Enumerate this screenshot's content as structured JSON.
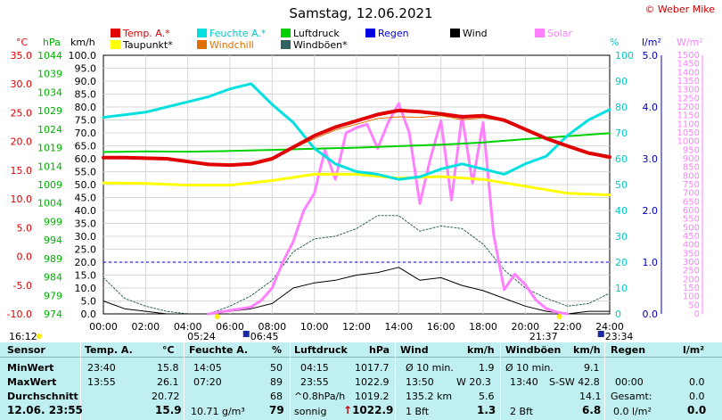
{
  "title": "Samstag, 12.06.2021",
  "credit": "© Weber Mike",
  "legend": [
    {
      "label": "Temp. A.*",
      "color": "#e00000"
    },
    {
      "label": "Feuchte A.*",
      "color": "#00e0e0"
    },
    {
      "label": "Luftdruck",
      "color": "#00d000"
    },
    {
      "label": "Regen",
      "color": "#0000e0"
    },
    {
      "label": "Wind",
      "color": "#000000"
    },
    {
      "label": "Solar",
      "color": "#ff80ff"
    },
    {
      "label": "Taupunkt*",
      "color": "#ffff00"
    },
    {
      "label": "Windchill",
      "color": "#e07000"
    },
    {
      "label": "Windböen*",
      "color": "#306060"
    }
  ],
  "axis_headers": {
    "temp": "°C",
    "press": "hPa",
    "wind": "km/h",
    "hum": "%",
    "rain": "l/m²",
    "solar": "W/m²"
  },
  "chart_data": {
    "type": "line",
    "x_label_ticks": [
      "00:00",
      "02:00",
      "04:00",
      "06:00",
      "08:00",
      "10:00",
      "12:00",
      "14:00",
      "16:00",
      "18:00",
      "20:00",
      "22:00",
      "24:00"
    ],
    "y_axes": {
      "temp": {
        "ticks": [
          "35.0",
          "30.0",
          "25.0",
          "20.0",
          "15.0",
          "10.0",
          "5.0",
          "0.0",
          "-5.0",
          "-10.0"
        ],
        "range": [
          -10,
          35
        ]
      },
      "pressure": {
        "ticks": [
          "1044",
          "1039",
          "1034",
          "1029",
          "1024",
          "1019",
          "1014",
          "1009",
          "1004",
          "999",
          "994",
          "989",
          "984",
          "979",
          "974"
        ],
        "range": [
          974,
          1044
        ]
      },
      "wind": {
        "ticks": [
          "100.0",
          "95.0",
          "90.0",
          "85.0",
          "80.0",
          "75.0",
          "70.0",
          "65.0",
          "60.0",
          "55.0",
          "50.0",
          "45.0",
          "40.0",
          "35.0",
          "30.0",
          "25.0",
          "20.0",
          "15.0",
          "10.0",
          "5.0",
          "0.0"
        ],
        "range": [
          0,
          100
        ]
      },
      "humidity": {
        "ticks": [
          "100",
          "90",
          "80",
          "70",
          "60",
          "50",
          "40",
          "30",
          "20",
          "10",
          "0"
        ],
        "range": [
          0,
          100
        ]
      },
      "rain": {
        "ticks": [
          "5.0",
          "4.0",
          "3.0",
          "2.0",
          "1.0",
          "0.0"
        ],
        "range": [
          0,
          5
        ]
      },
      "solar": {
        "ticks": [
          "1500",
          "1450",
          "1400",
          "1350",
          "1300",
          "1250",
          "1200",
          "1150",
          "1100",
          "1050",
          "1000",
          "950",
          "900",
          "850",
          "800",
          "750",
          "700",
          "650",
          "600",
          "550",
          "500",
          "450",
          "400",
          "350",
          "300",
          "250",
          "200",
          "150",
          "100",
          "50",
          "0"
        ],
        "range": [
          0,
          1500
        ]
      }
    },
    "series": [
      {
        "name": "Temp. A.*",
        "axis": "temp",
        "color": "#e00000",
        "width": 4,
        "x": [
          0,
          1,
          2,
          3,
          4,
          5,
          6,
          7,
          8,
          9,
          10,
          11,
          12,
          13,
          14,
          15,
          16,
          17,
          18,
          19,
          20,
          21,
          22,
          23,
          24
        ],
        "y": [
          17.2,
          17.2,
          17.1,
          17.0,
          16.5,
          16.0,
          15.9,
          16.1,
          17.0,
          19.0,
          21.0,
          22.5,
          23.6,
          24.7,
          25.4,
          25.2,
          24.8,
          24.3,
          24.5,
          23.7,
          22.1,
          20.5,
          19.2,
          18.0,
          17.3
        ]
      },
      {
        "name": "Feuchte A.*",
        "axis": "hum",
        "color": "#00e0e0",
        "width": 3,
        "x": [
          0,
          1,
          2,
          3,
          4,
          5,
          6,
          7,
          8,
          9,
          10,
          11,
          12,
          13,
          14,
          15,
          16,
          17,
          18,
          19,
          20,
          21,
          22,
          23,
          24
        ],
        "y": [
          76,
          77,
          78,
          80,
          82,
          84,
          87,
          89,
          81,
          74,
          64,
          58,
          55,
          54,
          52,
          53,
          56,
          58,
          56,
          54,
          58,
          61,
          69,
          75,
          79
        ]
      },
      {
        "name": "Luftdruck",
        "axis": "pressure",
        "color": "#00d000",
        "width": 2,
        "x": [
          0,
          2,
          4,
          6,
          8,
          10,
          12,
          14,
          16,
          18,
          20,
          22,
          24
        ],
        "y": [
          1017.8,
          1018.0,
          1017.9,
          1018.1,
          1018.4,
          1018.7,
          1019.0,
          1019.4,
          1019.8,
          1020.4,
          1021.3,
          1022.1,
          1022.9
        ]
      },
      {
        "name": "Taupunkt*",
        "axis": "temp",
        "color": "#ffff00",
        "width": 3,
        "x": [
          0,
          2,
          4,
          6,
          8,
          10,
          12,
          14,
          16,
          18,
          20,
          22,
          24
        ],
        "y": [
          12.8,
          12.7,
          12.4,
          12.4,
          13.2,
          14.3,
          14.3,
          13.6,
          13.9,
          13.4,
          12.2,
          11.0,
          10.7
        ]
      },
      {
        "name": "Windchill",
        "axis": "temp",
        "color": "#e07000",
        "width": 1,
        "x": [
          8,
          9,
          10,
          11,
          12,
          13,
          14,
          15,
          16,
          17,
          18,
          19,
          20
        ],
        "y": [
          17.0,
          18.8,
          20.5,
          22.0,
          23.0,
          24.0,
          24.3,
          24.2,
          24.5,
          23.8,
          24.1,
          23.6,
          22.0
        ]
      },
      {
        "name": "Solar",
        "axis": "solar",
        "color": "#ff80ff",
        "width": 3,
        "x": [
          5,
          6,
          7,
          7.5,
          8,
          8.5,
          9,
          9.5,
          10,
          10.5,
          11,
          11.5,
          12,
          12.5,
          13,
          13.5,
          14,
          14.5,
          15,
          15.5,
          16,
          16.5,
          17,
          17.5,
          18,
          18.5,
          19,
          19.5,
          20,
          20.5,
          21,
          21.5,
          22
        ],
        "y": [
          0,
          20,
          40,
          80,
          150,
          300,
          420,
          600,
          700,
          950,
          780,
          1050,
          1080,
          1100,
          960,
          1110,
          1220,
          1050,
          640,
          900,
          1120,
          660,
          1150,
          760,
          1110,
          460,
          140,
          230,
          170,
          80,
          30,
          10,
          0
        ]
      },
      {
        "name": "Wind",
        "axis": "wind",
        "color": "#000000",
        "width": 1,
        "x": [
          0,
          1,
          2,
          3,
          4,
          5,
          6,
          7,
          8,
          9,
          10,
          11,
          12,
          13,
          14,
          15,
          16,
          17,
          18,
          19,
          20,
          21,
          22,
          23,
          24
        ],
        "y": [
          5,
          2,
          1,
          0,
          0,
          0,
          1,
          2,
          4,
          10,
          12,
          13,
          15,
          16,
          18,
          13,
          14,
          11,
          9,
          6,
          3,
          1,
          0,
          1,
          1
        ]
      },
      {
        "name": "Windböen*",
        "axis": "wind",
        "color": "#306060",
        "width": 1,
        "x": [
          0,
          1,
          2,
          3,
          4,
          5,
          6,
          7,
          8,
          9,
          10,
          11,
          12,
          13,
          14,
          15,
          16,
          17,
          18,
          19,
          20,
          21,
          22,
          23,
          24
        ],
        "y": [
          14,
          6,
          3,
          1,
          0,
          0,
          3,
          7,
          13,
          24,
          29,
          30,
          33,
          38,
          38,
          32,
          34,
          33,
          27,
          17,
          10,
          6,
          3,
          4,
          8
        ]
      }
    ],
    "rain_line": 1.0,
    "sun_markers": {
      "sunrise": "05:24",
      "sunset": "21:37",
      "moonrise": "06:45",
      "moonset": "23:34",
      "left_time": "16:12"
    }
  },
  "stats": {
    "sensor_label": "Sensor",
    "minwert_label": "MinWert",
    "maxwert_label": "MaxWert",
    "durchschnitt_label": "Durchschnitt",
    "now_label": "12.06. 23:55",
    "temp_hdr": "Temp. A.",
    "temp_unit": "°C",
    "temp_min_time": "23:40",
    "temp_min": "15.8",
    "temp_max_time": "13:55",
    "temp_max": "26.1",
    "temp_avg": "20.72",
    "temp_now": "15.9",
    "hum_hdr": "Feuchte A.",
    "hum_unit": "%",
    "hum_min_time": "14:05",
    "hum_min": "50",
    "hum_max_time": "07:20",
    "hum_max": "89",
    "hum_avg": "68",
    "hum_abs": "10.71 g/m³",
    "hum_now": "79",
    "press_hdr": "Luftdruck",
    "press_unit": "hPa",
    "press_min_time": "04:15",
    "press_min": "1017.7",
    "press_max_time": "23:55",
    "press_max": "1022.9",
    "press_trend_label": "^0.8hPa/h",
    "press_avg": "1019.2",
    "press_weather": "sonnig",
    "press_now": "1022.9",
    "wind_hdr": "Wind",
    "wind_unit": "km/h",
    "wind_avg_label": "Ø 10 min.",
    "wind_avg": "1.9",
    "wind_max_time": "13:50",
    "wind_max": "W 20.3",
    "wind_dist": "135.2 km",
    "wind_dist_val": "5.6",
    "wind_bft": "1 Bft",
    "wind_now": "1.3",
    "gust_hdr": "Windböen",
    "gust_unit": "km/h",
    "gust_avg_label": "Ø 10 min.",
    "gust_avg": "9.1",
    "gust_max_time": "13:40",
    "gust_max": "S-SW 42.8",
    "gust_avg_day": "14.1",
    "gust_bft": "2 Bft",
    "gust_now": "6.8",
    "rain_hdr": "Regen",
    "rain_unit": "l/m²",
    "rain_max_time": "00:00",
    "rain_max": "0.0",
    "rain_total_label": "Gesamt:",
    "rain_total": "0.0",
    "rain_now_label": "0.0 l/m²",
    "rain_now": "0.0"
  }
}
